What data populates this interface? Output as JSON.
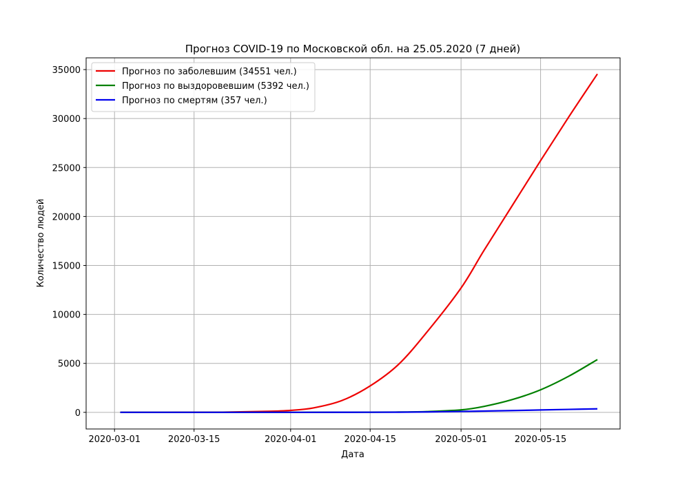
{
  "chart_data": {
    "type": "line",
    "title": "Прогноз COVID-19 по Московской обл. на 25.05.2020 (7 дней)",
    "xlabel": "Дата",
    "ylabel": "Количество людей",
    "x_ticks": [
      "2020-03-01",
      "2020-03-15",
      "2020-04-01",
      "2020-04-15",
      "2020-05-01",
      "2020-05-15"
    ],
    "xlim": [
      "2020-02-25",
      "2020-05-29"
    ],
    "y_ticks": [
      0,
      5000,
      10000,
      15000,
      20000,
      25000,
      30000,
      35000
    ],
    "ylim": [
      -1700,
      36200
    ],
    "grid": true,
    "legend_position": "top-left",
    "x": [
      "2020-03-02",
      "2020-03-10",
      "2020-03-20",
      "2020-03-28",
      "2020-04-01",
      "2020-04-05",
      "2020-04-10",
      "2020-04-15",
      "2020-04-20",
      "2020-04-25",
      "2020-05-01",
      "2020-05-05",
      "2020-05-10",
      "2020-05-15",
      "2020-05-20",
      "2020-05-25"
    ],
    "series": [
      {
        "name": "Прогноз по заболевшим (34551 чел.)",
        "color": "#ee0000",
        "values": [
          0,
          2,
          20,
          100,
          200,
          450,
          1200,
          2700,
          4900,
          8200,
          12700,
          16500,
          21100,
          25700,
          30200,
          34551
        ]
      },
      {
        "name": "Прогноз по выздоровевшим (5392 чел.)",
        "color": "#008000",
        "values": [
          0,
          0,
          0,
          0,
          1,
          3,
          8,
          15,
          30,
          80,
          250,
          600,
          1300,
          2300,
          3700,
          5392
        ]
      },
      {
        "name": "Прогноз по смертям (357 чел.)",
        "color": "#0000ee",
        "values": [
          0,
          0,
          0,
          0,
          1,
          2,
          4,
          8,
          15,
          40,
          90,
          130,
          180,
          240,
          300,
          357
        ]
      }
    ]
  }
}
